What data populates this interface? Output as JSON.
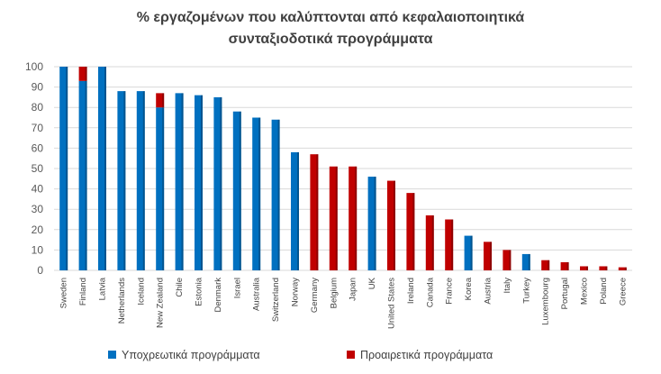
{
  "chart_data": {
    "type": "bar",
    "stacked": true,
    "title": [
      "% εργαζομένων που καλύπτονται από κεφαλαιοποιητικά",
      "συνταξιοδοτικά προγράμματα"
    ],
    "xlabel": "",
    "ylabel": "",
    "ylim": [
      0,
      100
    ],
    "yticks": [
      0,
      10,
      20,
      30,
      40,
      50,
      60,
      70,
      80,
      90,
      100
    ],
    "grid": true,
    "legend_position": "bottom",
    "categories": [
      "Sweden",
      "Finland",
      "Latvia",
      "Netherlands",
      "Iceland",
      "New Zealand",
      "Chile",
      "Estonia",
      "Denmark",
      "Israel",
      "Australia",
      "Switzerland",
      "Norway",
      "Germany",
      "Belgium",
      "Japan",
      "UK",
      "United States",
      "Ireland",
      "Canada",
      "France",
      "Korea",
      "Austria",
      "Italy",
      "Turkey",
      "Luxembourg",
      "Portugal",
      "Mexico",
      "Poland",
      "Greece"
    ],
    "series": [
      {
        "name": "Υποχρεωτικά προγράμματα",
        "color": "#0070C0",
        "values": [
          100,
          93,
          100,
          88,
          88,
          80,
          87,
          86,
          85,
          78,
          75,
          74,
          58,
          0,
          0,
          0,
          46,
          0,
          0,
          0,
          0,
          17,
          0,
          0,
          8,
          0,
          0,
          0,
          0,
          0
        ]
      },
      {
        "name": "Προαιρετικά προγράμματα",
        "color": "#C00000",
        "values": [
          0,
          7,
          0,
          0,
          0,
          7,
          0,
          0,
          0,
          0,
          0,
          0,
          0,
          57,
          51,
          51,
          0,
          44,
          38,
          27,
          25,
          0,
          14,
          10,
          0,
          5,
          4,
          2,
          2,
          1.5
        ]
      }
    ]
  }
}
